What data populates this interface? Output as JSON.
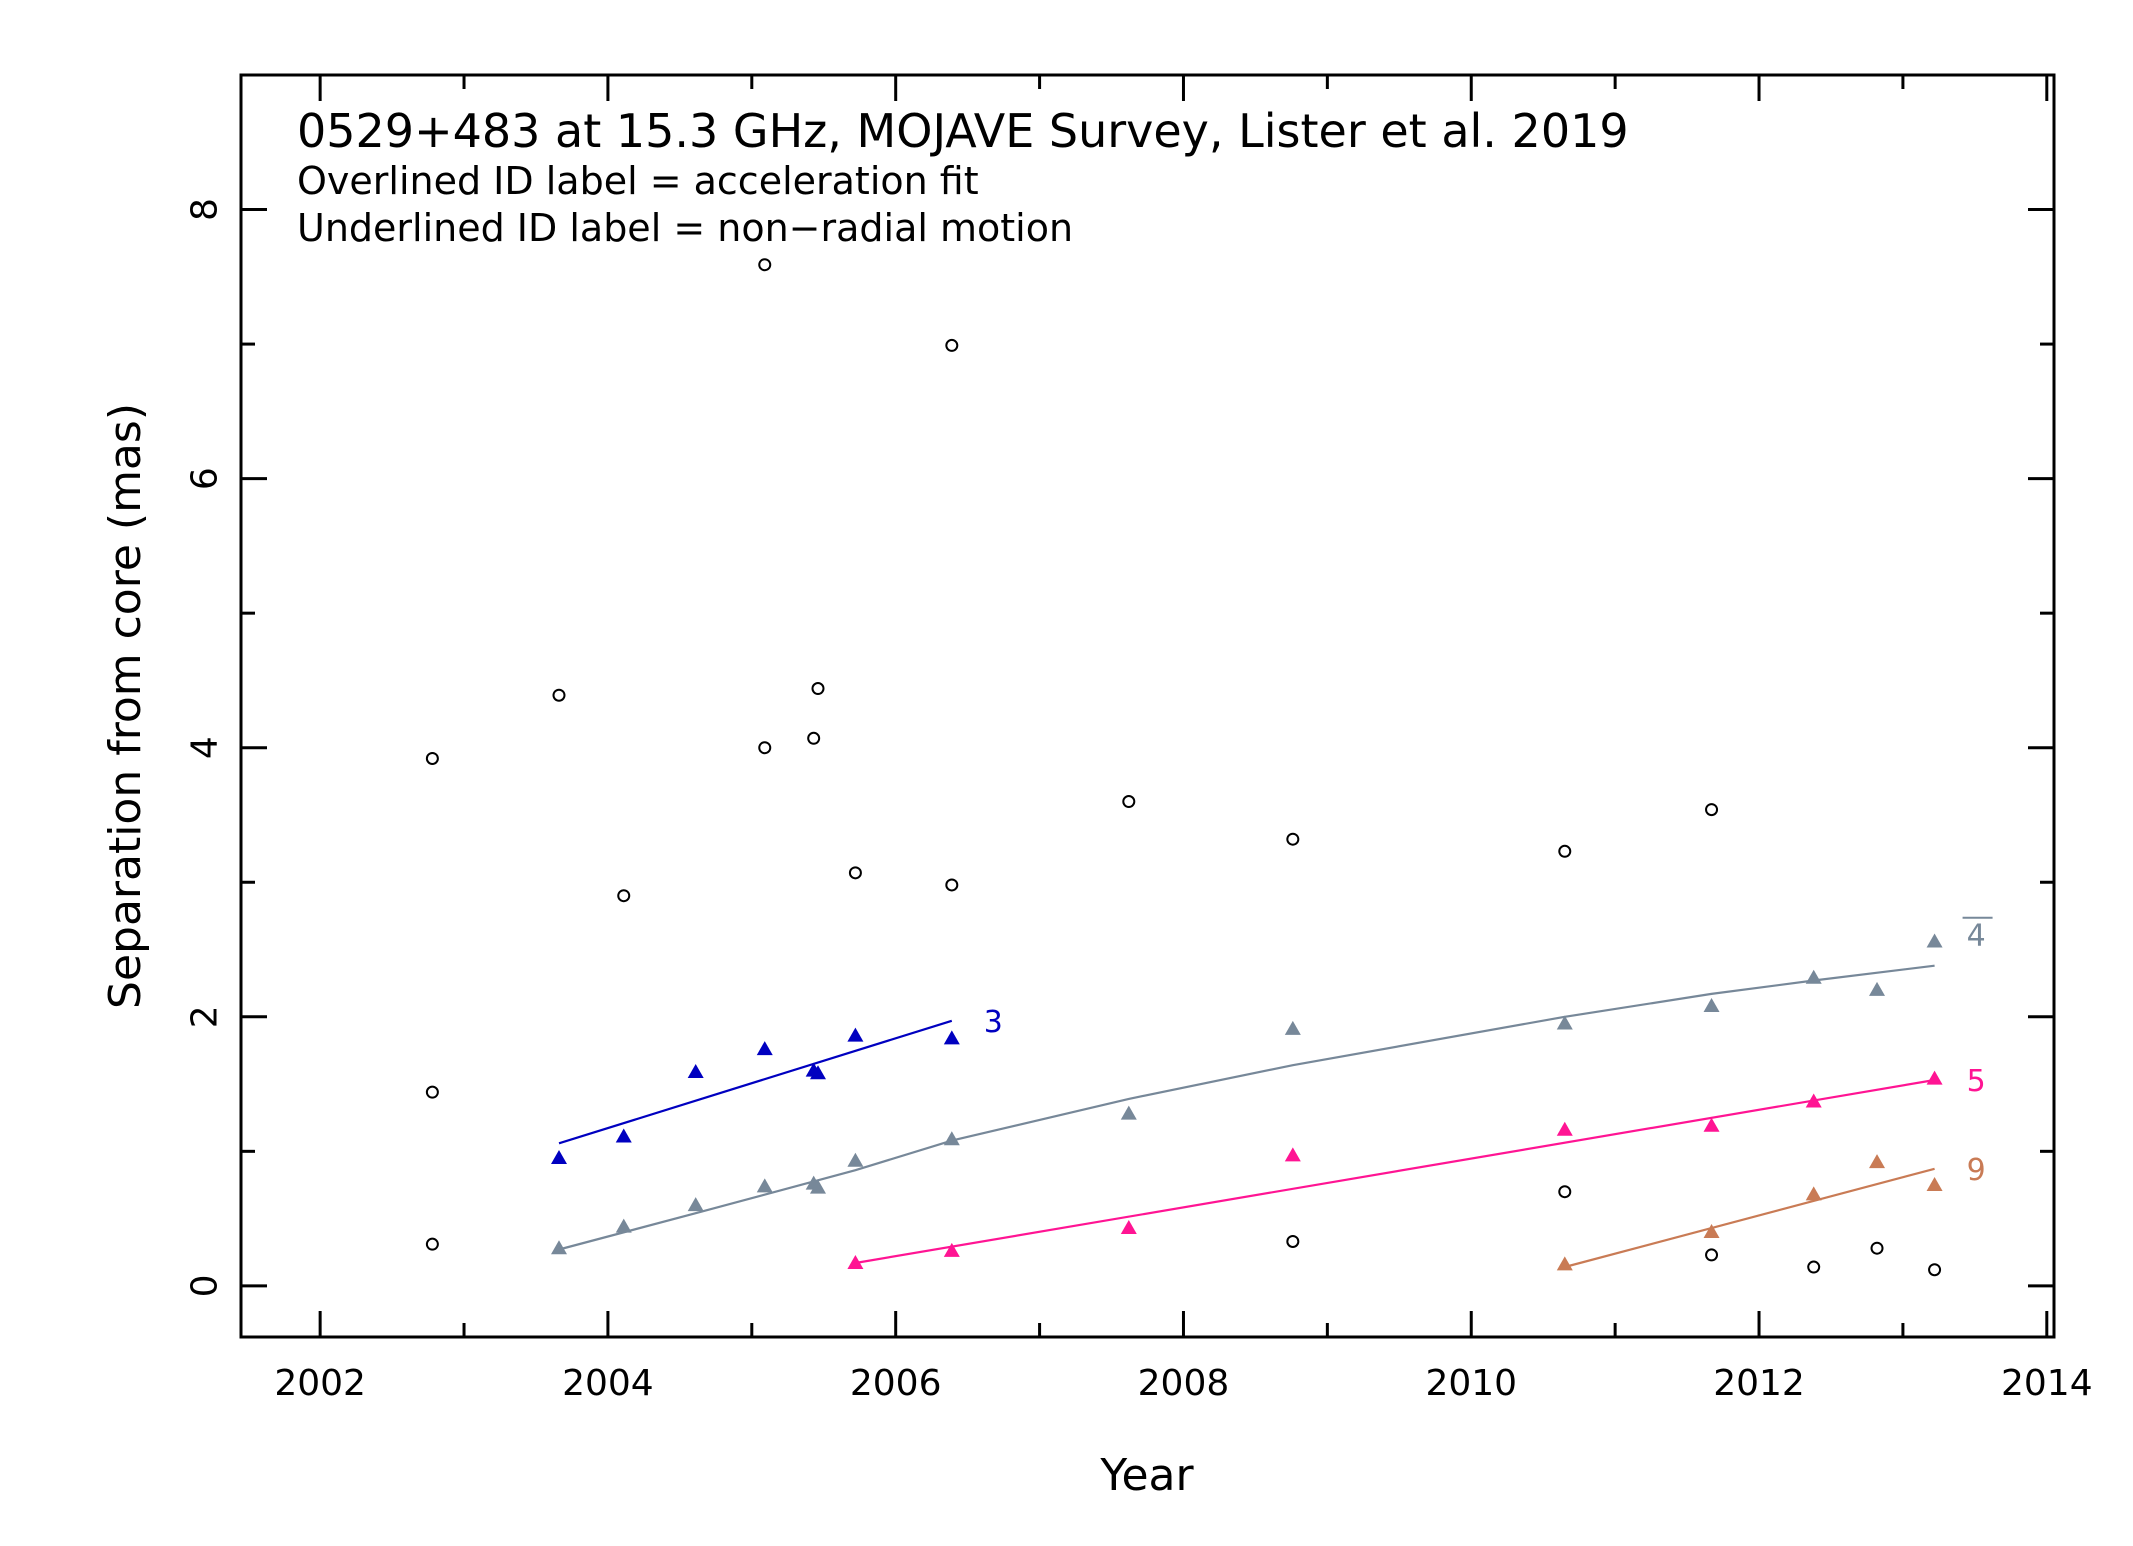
{
  "chart_data": {
    "type": "scatter",
    "title": "0529+483 at 15.3 GHz, MOJAVE Survey, Lister et al. 2019",
    "subtitle_lines": [
      "Overlined ID label = acceleration fit",
      "Underlined ID label = non−radial motion"
    ],
    "xlabel": "Year",
    "ylabel": "Separation from core (mas)",
    "xlim": [
      2001.45,
      2014.05
    ],
    "ylim": [
      -0.38,
      9.0
    ],
    "xticks": [
      2002,
      2004,
      2006,
      2008,
      2010,
      2012,
      2014
    ],
    "xtick_labels": [
      "2002",
      "2004",
      "2006",
      "2008",
      "2010",
      "2012",
      "2014"
    ],
    "yticks": [
      0,
      2,
      4,
      6,
      8
    ],
    "ytick_labels": [
      "0",
      "2",
      "4",
      "6",
      "8"
    ],
    "grid": false,
    "unassigned_points": {
      "marker": "open-circle",
      "color": "#000000",
      "points": [
        [
          2002.78,
          3.92
        ],
        [
          2002.78,
          1.44
        ],
        [
          2002.78,
          0.31
        ],
        [
          2003.66,
          4.39
        ],
        [
          2004.11,
          2.9
        ],
        [
          2005.09,
          7.59
        ],
        [
          2005.09,
          4.0
        ],
        [
          2005.43,
          4.07
        ],
        [
          2005.46,
          4.44
        ],
        [
          2005.72,
          3.07
        ],
        [
          2006.39,
          6.99
        ],
        [
          2006.39,
          2.98
        ],
        [
          2007.62,
          3.6
        ],
        [
          2008.76,
          3.32
        ],
        [
          2008.76,
          0.33
        ],
        [
          2010.65,
          3.23
        ],
        [
          2010.65,
          0.7
        ],
        [
          2011.67,
          3.54
        ],
        [
          2011.67,
          0.23
        ],
        [
          2012.38,
          0.14
        ],
        [
          2012.82,
          0.28
        ],
        [
          2013.22,
          0.12
        ]
      ]
    },
    "series": [
      {
        "name": "3",
        "label_style": "plain",
        "color": "#0000c0",
        "marker": "filled-triangle",
        "points": [
          [
            2003.66,
            0.95
          ],
          [
            2004.11,
            1.11
          ],
          [
            2004.61,
            1.59
          ],
          [
            2005.09,
            1.76
          ],
          [
            2005.43,
            1.6
          ],
          [
            2005.46,
            1.58
          ],
          [
            2005.72,
            1.86
          ],
          [
            2006.39,
            1.84
          ]
        ],
        "fit": {
          "kind": "linear",
          "x": [
            2003.66,
            2006.39
          ],
          "y": [
            1.06,
            1.97
          ]
        }
      },
      {
        "name": "4",
        "label_style": "overlined",
        "color": "#778899",
        "marker": "filled-triangle",
        "points": [
          [
            2003.66,
            0.28
          ],
          [
            2004.11,
            0.44
          ],
          [
            2004.61,
            0.6
          ],
          [
            2005.09,
            0.74
          ],
          [
            2005.43,
            0.76
          ],
          [
            2005.46,
            0.73
          ],
          [
            2005.72,
            0.93
          ],
          [
            2006.39,
            1.09
          ],
          [
            2007.62,
            1.28
          ],
          [
            2008.76,
            1.91
          ],
          [
            2010.65,
            1.95
          ],
          [
            2011.67,
            2.08
          ],
          [
            2012.38,
            2.29
          ],
          [
            2012.82,
            2.2
          ],
          [
            2013.22,
            2.56
          ]
        ],
        "fit": {
          "kind": "acceleration",
          "x": [
            2003.66,
            2004.61,
            2005.72,
            2006.39,
            2007.62,
            2008.76,
            2010.65,
            2011.67,
            2012.38,
            2013.22
          ],
          "y": [
            0.27,
            0.54,
            0.86,
            1.08,
            1.39,
            1.64,
            2.0,
            2.17,
            2.27,
            2.38
          ]
        }
      },
      {
        "name": "5",
        "label_style": "plain",
        "color": "#ff1493",
        "marker": "filled-triangle",
        "points": [
          [
            2005.72,
            0.17
          ],
          [
            2006.39,
            0.26
          ],
          [
            2007.62,
            0.43
          ],
          [
            2008.76,
            0.97
          ],
          [
            2010.65,
            1.16
          ],
          [
            2011.67,
            1.19
          ],
          [
            2012.38,
            1.37
          ],
          [
            2013.22,
            1.54
          ]
        ],
        "fit": {
          "kind": "linear",
          "x": [
            2005.72,
            2013.22
          ],
          "y": [
            0.17,
            1.53
          ]
        }
      },
      {
        "name": "9",
        "label_style": "plain",
        "color": "#c97b55",
        "marker": "filled-triangle",
        "points": [
          [
            2010.65,
            0.16
          ],
          [
            2011.67,
            0.4
          ],
          [
            2012.38,
            0.68
          ],
          [
            2012.82,
            0.92
          ],
          [
            2013.22,
            0.75
          ]
        ],
        "fit": {
          "kind": "linear",
          "x": [
            2010.65,
            2013.22
          ],
          "y": [
            0.14,
            0.87
          ]
        }
      }
    ]
  }
}
